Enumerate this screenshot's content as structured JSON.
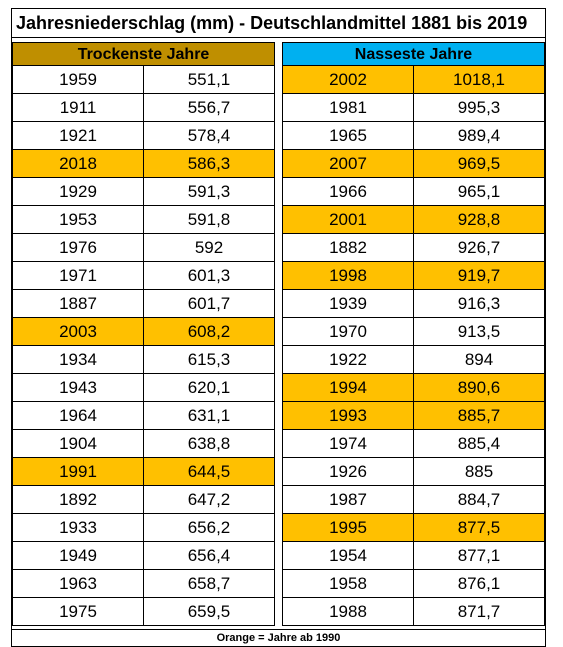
{
  "title": "Jahresniederschlag (mm) - Deutschlandmittel 1881 bis 2019",
  "note": "Orange = Jahre ab 1990",
  "colors": {
    "dry_header": "#bf8f00",
    "wet_header": "#00b0f0",
    "highlight": "#ffc000"
  },
  "dry": {
    "header": "Trockenste Jahre",
    "rows": [
      {
        "year": "1959",
        "value": "551,1",
        "hl": false
      },
      {
        "year": "1911",
        "value": "556,7",
        "hl": false
      },
      {
        "year": "1921",
        "value": "578,4",
        "hl": false
      },
      {
        "year": "2018",
        "value": "586,3",
        "hl": true
      },
      {
        "year": "1929",
        "value": "591,3",
        "hl": false
      },
      {
        "year": "1953",
        "value": "591,8",
        "hl": false
      },
      {
        "year": "1976",
        "value": "592",
        "hl": false
      },
      {
        "year": "1971",
        "value": "601,3",
        "hl": false
      },
      {
        "year": "1887",
        "value": "601,7",
        "hl": false
      },
      {
        "year": "2003",
        "value": "608,2",
        "hl": true
      },
      {
        "year": "1934",
        "value": "615,3",
        "hl": false
      },
      {
        "year": "1943",
        "value": "620,1",
        "hl": false
      },
      {
        "year": "1964",
        "value": "631,1",
        "hl": false
      },
      {
        "year": "1904",
        "value": "638,8",
        "hl": false
      },
      {
        "year": "1991",
        "value": "644,5",
        "hl": true
      },
      {
        "year": "1892",
        "value": "647,2",
        "hl": false
      },
      {
        "year": "1933",
        "value": "656,2",
        "hl": false
      },
      {
        "year": "1949",
        "value": "656,4",
        "hl": false
      },
      {
        "year": "1963",
        "value": "658,7",
        "hl": false
      },
      {
        "year": "1975",
        "value": "659,5",
        "hl": false
      }
    ]
  },
  "wet": {
    "header": "Nasseste Jahre",
    "rows": [
      {
        "year": "2002",
        "value": "1018,1",
        "hl": true
      },
      {
        "year": "1981",
        "value": "995,3",
        "hl": false
      },
      {
        "year": "1965",
        "value": "989,4",
        "hl": false
      },
      {
        "year": "2007",
        "value": "969,5",
        "hl": true
      },
      {
        "year": "1966",
        "value": "965,1",
        "hl": false
      },
      {
        "year": "2001",
        "value": "928,8",
        "hl": true
      },
      {
        "year": "1882",
        "value": "926,7",
        "hl": false
      },
      {
        "year": "1998",
        "value": "919,7",
        "hl": true
      },
      {
        "year": "1939",
        "value": "916,3",
        "hl": false
      },
      {
        "year": "1970",
        "value": "913,5",
        "hl": false
      },
      {
        "year": "1922",
        "value": "894",
        "hl": false
      },
      {
        "year": "1994",
        "value": "890,6",
        "hl": true
      },
      {
        "year": "1993",
        "value": "885,7",
        "hl": true
      },
      {
        "year": "1974",
        "value": "885,4",
        "hl": false
      },
      {
        "year": "1926",
        "value": "885",
        "hl": false
      },
      {
        "year": "1987",
        "value": "884,7",
        "hl": false
      },
      {
        "year": "1995",
        "value": "877,5",
        "hl": true
      },
      {
        "year": "1954",
        "value": "877,1",
        "hl": false
      },
      {
        "year": "1958",
        "value": "876,1",
        "hl": false
      },
      {
        "year": "1988",
        "value": "871,7",
        "hl": false
      }
    ]
  }
}
